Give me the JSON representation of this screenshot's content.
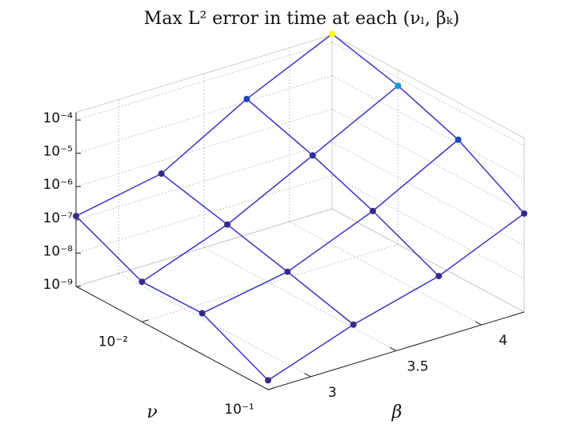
{
  "chart_data": {
    "type": "mesh",
    "title": "Max L² error in time at each (νₗ, βₖ)",
    "xlabel": "ν",
    "ylabel": "β",
    "x": [
      0.003,
      0.01,
      0.03,
      0.1
    ],
    "y": [
      2.75,
      3.25,
      3.75,
      4.25
    ],
    "z": [
      [
        1.3e-07,
        4.1e-07,
        1.2e-05,
        0.00018
      ],
      [
        1.6e-08,
        1.4e-07,
        2.8e-06,
        5.8e-05
      ],
      [
        1.7e-08,
        5e-08,
        5.6e-07,
        1.3e-05
      ],
      [
        1.9e-09,
        1.5e-08,
        7.2e-08,
        9.1e-07
      ]
    ],
    "xlim": [
      0.003,
      0.1
    ],
    "xscale": "log",
    "xticks": [
      {
        "value": 0.01,
        "label": "10⁻²"
      },
      {
        "value": 0.1,
        "label": "10⁻¹"
      }
    ],
    "ylim": [
      2.75,
      4.25
    ],
    "yticks": [
      3,
      3.5,
      4
    ],
    "zlim": [
      1e-09,
      0.00017
    ],
    "zscale": "log",
    "zticks": [
      {
        "value": 1e-09,
        "label": "10⁻⁹"
      },
      {
        "value": 1e-08,
        "label": "10⁻⁸"
      },
      {
        "value": 1e-07,
        "label": "10⁻⁷"
      },
      {
        "value": 1e-06,
        "label": "10⁻⁶"
      },
      {
        "value": 1e-05,
        "label": "10⁻⁵"
      },
      {
        "value": 0.0001,
        "label": "10⁻⁴"
      }
    ],
    "grid": true,
    "line_color": "#3b34c4",
    "colormap": [
      "#352a87",
      "#0363e1",
      "#1485d4",
      "#06a7c6",
      "#38b99e",
      "#92bf73",
      "#d9ba56",
      "#fcce2e",
      "#f9fb0e"
    ]
  }
}
